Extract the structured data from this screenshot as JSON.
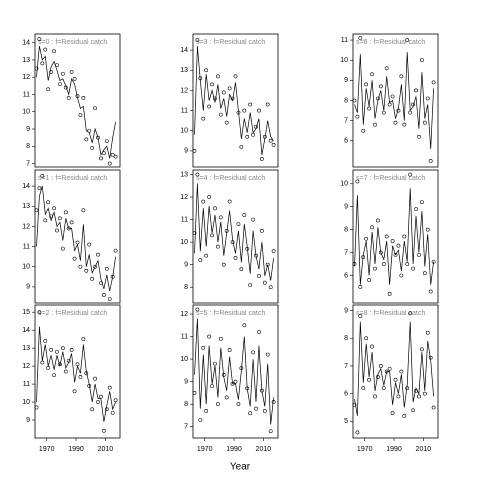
{
  "xlabel": "Year",
  "chart_data": [
    {
      "type": "line",
      "title": "s=0 : f=Residual catch",
      "x": [
        1963,
        1965,
        1967,
        1969,
        1971,
        1973,
        1975,
        1977,
        1979,
        1981,
        1983,
        1985,
        1987,
        1989,
        1991,
        1993,
        1995,
        1997,
        1999,
        2001,
        2003,
        2005,
        2007,
        2009,
        2011,
        2013,
        2015,
        2017
      ],
      "xlim": [
        1962,
        2020
      ],
      "ylim": [
        6.8,
        14.5
      ],
      "yticks": [
        7,
        8,
        9,
        10,
        11,
        12,
        13,
        14
      ],
      "series": [
        {
          "style": "points",
          "color": "#000000",
          "values": [
            12.5,
            14.2,
            12.8,
            13.6,
            11.3,
            12.3,
            13.5,
            12.7,
            11.6,
            12.2,
            11.4,
            10.8,
            12.3,
            11.9,
            10.9,
            9.8,
            10.8,
            8.4,
            8.9,
            7.9,
            10.2,
            8.5,
            7.3,
            7.6,
            8.3,
            7.0,
            7.5,
            7.4
          ]
        },
        {
          "style": "line",
          "color": "#000000",
          "values": [
            12.0,
            13.8,
            13.0,
            13.2,
            11.8,
            12.6,
            12.9,
            12.4,
            11.8,
            11.9,
            11.5,
            11.0,
            11.9,
            11.6,
            10.8,
            10.2,
            10.3,
            8.9,
            8.8,
            8.2,
            9.0,
            8.5,
            7.5,
            7.8,
            8.0,
            7.3,
            8.5,
            9.4
          ]
        }
      ]
    },
    {
      "type": "line",
      "title": "s=1 : f=Residual catch",
      "x": [
        1963,
        1965,
        1967,
        1969,
        1971,
        1973,
        1975,
        1977,
        1979,
        1981,
        1983,
        1985,
        1987,
        1989,
        1991,
        1993,
        1995,
        1997,
        1999,
        2001,
        2003,
        2005,
        2007,
        2009,
        2011,
        2013,
        2015,
        2017
      ],
      "xlim": [
        1962,
        2020
      ],
      "ylim": [
        8.2,
        14.8
      ],
      "yticks": [
        9,
        10,
        11,
        12,
        13,
        14
      ],
      "series": [
        {
          "style": "points",
          "color": "#000000",
          "values": [
            12.8,
            13.9,
            14.5,
            12.3,
            13.2,
            12.5,
            12.9,
            11.8,
            12.4,
            10.9,
            12.7,
            11.9,
            12.2,
            10.4,
            11.2,
            10.0,
            12.8,
            9.8,
            11.1,
            9.4,
            10.0,
            10.6,
            9.2,
            8.6,
            9.9,
            8.4,
            9.5,
            10.8
          ]
        },
        {
          "style": "line",
          "color": "#000000",
          "values": [
            11.0,
            13.5,
            14.0,
            12.6,
            12.9,
            12.3,
            12.7,
            12.0,
            12.2,
            11.3,
            12.4,
            11.9,
            11.9,
            10.8,
            11.1,
            10.3,
            12.1,
            10.0,
            10.6,
            9.7,
            10.0,
            10.3,
            9.4,
            8.9,
            9.6,
            8.8,
            9.5,
            10.5
          ]
        }
      ]
    },
    {
      "type": "line",
      "title": "s=2 : f=Residual catch",
      "x": [
        1963,
        1965,
        1967,
        1969,
        1971,
        1973,
        1975,
        1977,
        1979,
        1981,
        1983,
        1985,
        1987,
        1989,
        1991,
        1993,
        1995,
        1997,
        1999,
        2001,
        2003,
        2005,
        2007,
        2009,
        2011,
        2013,
        2015,
        2017
      ],
      "xlim": [
        1962,
        2020
      ],
      "xticks": [
        1970,
        1990,
        2010
      ],
      "ylim": [
        8.0,
        15.4
      ],
      "yticks": [
        9,
        10,
        11,
        12,
        13,
        14,
        15
      ],
      "series": [
        {
          "style": "points",
          "color": "#000000",
          "values": [
            9.7,
            15.0,
            12.2,
            13.4,
            11.9,
            12.9,
            11.5,
            12.8,
            12.1,
            13.0,
            11.7,
            12.3,
            12.9,
            10.6,
            12.1,
            11.4,
            13.5,
            11.6,
            10.9,
            9.6,
            11.3,
            10.0,
            10.3,
            8.4,
            9.6,
            10.8,
            9.4,
            10.1
          ]
        },
        {
          "style": "line",
          "color": "#000000",
          "values": [
            10.0,
            14.2,
            12.3,
            13.2,
            12.0,
            12.6,
            11.8,
            12.6,
            12.0,
            12.8,
            11.9,
            12.2,
            12.7,
            11.1,
            12.0,
            11.6,
            13.2,
            11.7,
            11.0,
            10.0,
            11.0,
            10.2,
            10.2,
            8.9,
            9.8,
            10.6,
            9.6,
            10.0
          ]
        }
      ]
    },
    {
      "type": "line",
      "title": "s=3 : f=Residual catch",
      "x": [
        1963,
        1965,
        1967,
        1969,
        1971,
        1973,
        1975,
        1977,
        1979,
        1981,
        1983,
        1985,
        1987,
        1989,
        1991,
        1993,
        1995,
        1997,
        1999,
        2001,
        2003,
        2005,
        2007,
        2009,
        2011,
        2013,
        2015,
        2017
      ],
      "xlim": [
        1962,
        2020
      ],
      "ylim": [
        8.2,
        14.8
      ],
      "yticks": [
        9,
        10,
        11,
        12,
        13,
        14
      ],
      "series": [
        {
          "style": "points",
          "color": "#000000",
          "values": [
            9.0,
            14.5,
            12.6,
            10.6,
            13.0,
            11.2,
            12.3,
            11.6,
            12.7,
            10.8,
            11.9,
            10.4,
            12.1,
            11.6,
            12.7,
            10.9,
            9.2,
            11.0,
            9.7,
            11.3,
            9.8,
            10.2,
            11.0,
            8.6,
            9.7,
            11.3,
            9.5,
            9.3
          ]
        },
        {
          "style": "line",
          "color": "#000000",
          "values": [
            9.8,
            14.2,
            12.5,
            11.0,
            12.8,
            11.5,
            12.0,
            11.4,
            12.3,
            11.1,
            11.6,
            10.7,
            11.8,
            11.5,
            12.4,
            11.0,
            9.6,
            10.6,
            9.9,
            10.9,
            9.9,
            10.1,
            10.6,
            8.8,
            9.6,
            10.5,
            9.7,
            9.5
          ]
        }
      ]
    },
    {
      "type": "line",
      "title": "s=4 : f=Residual catch",
      "x": [
        1963,
        1965,
        1967,
        1969,
        1971,
        1973,
        1975,
        1977,
        1979,
        1981,
        1983,
        1985,
        1987,
        1989,
        1991,
        1993,
        1995,
        1997,
        1999,
        2001,
        2003,
        2005,
        2007,
        2009,
        2011,
        2013,
        2015,
        2017
      ],
      "xlim": [
        1962,
        2020
      ],
      "ylim": [
        7.3,
        13.2
      ],
      "yticks": [
        8,
        9,
        10,
        11,
        12,
        13
      ],
      "series": [
        {
          "style": "points",
          "color": "#000000",
          "values": [
            10.4,
            13.0,
            9.2,
            11.8,
            9.4,
            12.0,
            10.3,
            11.5,
            9.8,
            11.1,
            9.0,
            10.5,
            11.8,
            10.0,
            9.3,
            10.8,
            8.8,
            11.2,
            9.7,
            8.1,
            11.0,
            9.4,
            8.5,
            10.5,
            8.2,
            9.0,
            8.0,
            9.6
          ]
        },
        {
          "style": "line",
          "color": "#000000",
          "values": [
            9.5,
            12.6,
            9.6,
            11.5,
            9.8,
            11.6,
            10.4,
            11.2,
            10.0,
            10.9,
            9.4,
            10.4,
            11.4,
            10.1,
            9.5,
            10.5,
            9.1,
            10.8,
            9.8,
            8.6,
            10.5,
            9.4,
            8.8,
            10.0,
            8.5,
            9.0,
            8.3,
            9.3
          ]
        }
      ]
    },
    {
      "type": "line",
      "title": "s=5 : f=Residual catch",
      "x": [
        1963,
        1965,
        1967,
        1969,
        1971,
        1973,
        1975,
        1977,
        1979,
        1981,
        1983,
        1985,
        1987,
        1989,
        1991,
        1993,
        1995,
        1997,
        1999,
        2001,
        2003,
        2005,
        2007,
        2009,
        2011,
        2013,
        2015,
        2017
      ],
      "xlim": [
        1962,
        2020
      ],
      "xticks": [
        1970,
        1990,
        2010
      ],
      "ylim": [
        6.5,
        12.4
      ],
      "yticks": [
        7,
        8,
        9,
        10,
        11,
        12
      ],
      "series": [
        {
          "style": "points",
          "color": "#000000",
          "values": [
            8.5,
            12.2,
            7.3,
            10.5,
            7.7,
            11.0,
            8.8,
            9.8,
            8.0,
            10.9,
            9.3,
            8.3,
            10.4,
            8.9,
            9.0,
            8.0,
            9.6,
            11.5,
            8.7,
            7.6,
            10.3,
            7.8,
            11.2,
            8.6,
            7.7,
            10.2,
            6.8,
            8.1
          ]
        },
        {
          "style": "line",
          "color": "#000000",
          "values": [
            9.3,
            11.8,
            7.8,
            10.2,
            8.0,
            10.6,
            8.9,
            9.7,
            8.3,
            10.5,
            9.2,
            8.6,
            10.1,
            8.9,
            8.9,
            8.2,
            9.5,
            11.0,
            8.7,
            7.9,
            10.0,
            8.1,
            10.6,
            8.6,
            7.9,
            9.8,
            7.1,
            8.3
          ]
        }
      ]
    },
    {
      "type": "line",
      "title": "s=6 : f=Residual catch",
      "x": [
        1963,
        1965,
        1967,
        1969,
        1971,
        1973,
        1975,
        1977,
        1979,
        1981,
        1983,
        1985,
        1987,
        1989,
        1991,
        1993,
        1995,
        1997,
        1999,
        2001,
        2003,
        2005,
        2007,
        2009,
        2011,
        2013,
        2015,
        2017
      ],
      "xlim": [
        1962,
        2020
      ],
      "ylim": [
        4.7,
        11.3
      ],
      "yticks": [
        6,
        7,
        8,
        9,
        10,
        11
      ],
      "series": [
        {
          "style": "points",
          "color": "#000000",
          "values": [
            8.0,
            7.2,
            11.1,
            6.5,
            8.8,
            7.6,
            9.3,
            6.8,
            8.1,
            8.7,
            7.4,
            9.6,
            7.8,
            8.2,
            6.9,
            7.5,
            9.2,
            6.8,
            11.0,
            7.4,
            7.8,
            8.5,
            6.2,
            10.0,
            6.9,
            8.1,
            5.0,
            8.9
          ]
        },
        {
          "style": "line",
          "color": "#000000",
          "values": [
            7.8,
            7.4,
            10.3,
            6.8,
            8.6,
            7.7,
            9.0,
            7.1,
            8.0,
            8.5,
            7.5,
            9.2,
            7.9,
            8.0,
            7.1,
            7.6,
            8.8,
            7.0,
            10.4,
            7.5,
            7.7,
            8.2,
            6.6,
            9.4,
            7.1,
            7.8,
            5.6,
            8.6
          ]
        }
      ]
    },
    {
      "type": "line",
      "title": "s=7 : f=Residual catch",
      "x": [
        1963,
        1965,
        1967,
        1969,
        1971,
        1973,
        1975,
        1977,
        1979,
        1981,
        1983,
        1985,
        1987,
        1989,
        1991,
        1993,
        1995,
        1997,
        1999,
        2001,
        2003,
        2005,
        2007,
        2009,
        2011,
        2013,
        2015,
        2017
      ],
      "xlim": [
        1962,
        2020
      ],
      "ylim": [
        4.8,
        10.6
      ],
      "yticks": [
        6,
        7,
        8,
        9,
        10
      ],
      "series": [
        {
          "style": "points",
          "color": "#000000",
          "values": [
            6.5,
            10.1,
            5.5,
            6.8,
            7.6,
            5.8,
            8.1,
            6.3,
            8.4,
            7.0,
            6.5,
            7.7,
            5.2,
            7.5,
            6.9,
            7.3,
            6.0,
            7.7,
            6.5,
            10.4,
            6.3,
            8.9,
            6.9,
            9.2,
            6.1,
            8.0,
            5.3,
            6.6
          ]
        },
        {
          "style": "line",
          "color": "#000000",
          "values": [
            6.4,
            9.5,
            5.6,
            6.9,
            7.5,
            6.0,
            7.9,
            6.5,
            8.1,
            7.0,
            6.7,
            7.5,
            5.6,
            7.3,
            6.9,
            7.1,
            6.2,
            7.5,
            6.6,
            9.8,
            6.5,
            8.6,
            7.0,
            8.8,
            6.4,
            7.8,
            5.6,
            6.6
          ]
        }
      ]
    },
    {
      "type": "line",
      "title": "s=8 : f=Residual catch",
      "x": [
        1963,
        1965,
        1967,
        1969,
        1971,
        1973,
        1975,
        1977,
        1979,
        1981,
        1983,
        1985,
        1987,
        1989,
        1991,
        1993,
        1995,
        1997,
        1999,
        2001,
        2003,
        2005,
        2007,
        2009,
        2011,
        2013,
        2015,
        2017
      ],
      "xlim": [
        1962,
        2020
      ],
      "xticks": [
        1970,
        1990,
        2010
      ],
      "ylim": [
        4.4,
        9.2
      ],
      "yticks": [
        5,
        6,
        7,
        8,
        9
      ],
      "series": [
        {
          "style": "points",
          "color": "#000000",
          "values": [
            5.6,
            4.6,
            8.8,
            6.2,
            8.0,
            6.5,
            7.7,
            5.9,
            6.6,
            7.0,
            6.2,
            6.8,
            6.9,
            5.3,
            6.5,
            5.9,
            6.8,
            5.2,
            6.2,
            8.9,
            5.4,
            6.1,
            5.9,
            7.6,
            6.0,
            8.2,
            7.3,
            5.5
          ]
        },
        {
          "style": "line",
          "color": "#000000",
          "values": [
            5.8,
            5.2,
            8.6,
            6.4,
            7.8,
            6.6,
            7.5,
            6.1,
            6.7,
            6.9,
            6.3,
            6.8,
            6.8,
            5.6,
            6.4,
            6.0,
            6.7,
            5.5,
            6.3,
            8.6,
            5.7,
            6.2,
            6.0,
            7.5,
            6.1,
            7.9,
            7.2,
            5.9
          ]
        }
      ]
    }
  ]
}
